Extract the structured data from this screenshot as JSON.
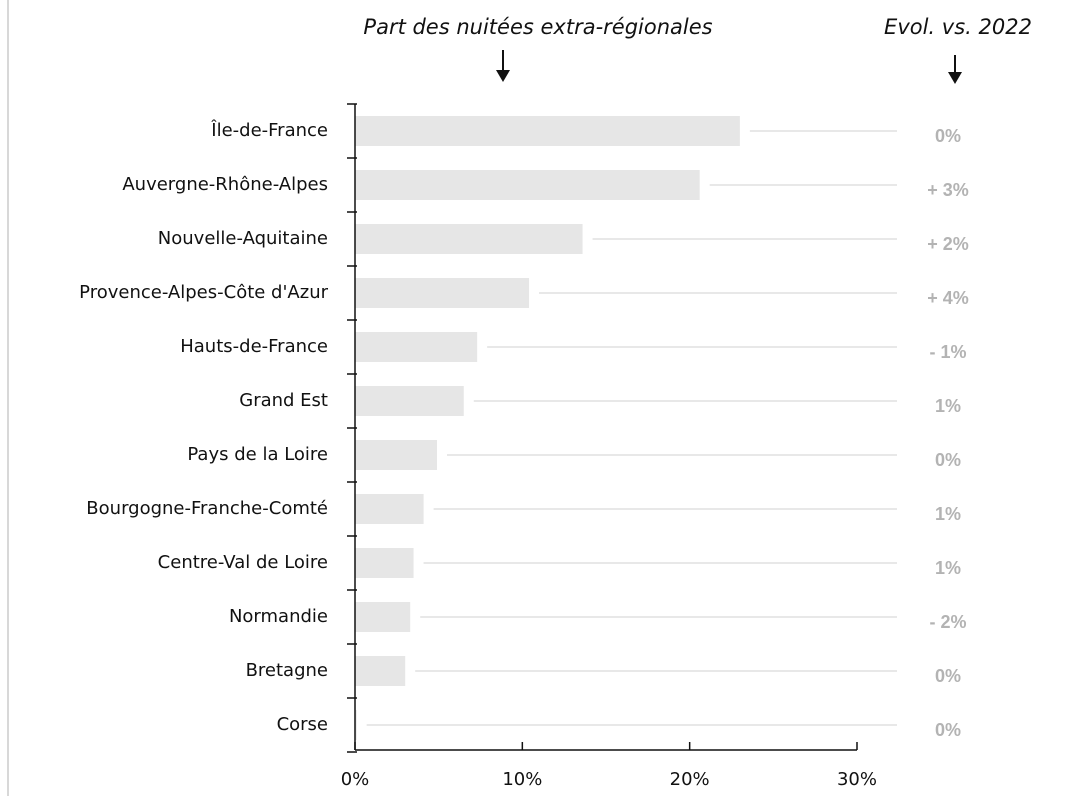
{
  "chart_data": {
    "type": "barh",
    "title": "Part des nuitées extra-régionales",
    "evolution_title": "Evol. vs. 2022",
    "categories": [
      "Île-de-France",
      "Auvergne-Rhône-Alpes",
      "Nouvelle-Aquitaine",
      "Provence-Alpes-Côte d'Azur",
      "Hauts-de-France",
      "Grand Est",
      "Pays de la Loire",
      "Bourgogne-Franche-Comté",
      "Centre-Val de Loire",
      "Normandie",
      "Bretagne",
      "Corse"
    ],
    "values": [
      23.0,
      20.6,
      13.6,
      10.4,
      7.3,
      6.5,
      4.9,
      4.1,
      3.5,
      3.3,
      3.0,
      0.1
    ],
    "evolution_labels": [
      "0%",
      "+ 3%",
      "+ 2%",
      "+ 4%",
      "- 1%",
      "1%",
      "0%",
      "1%",
      "1%",
      "- 2%",
      "0%",
      "0%"
    ],
    "color": "#e6e6e6",
    "xlim": [
      0,
      30
    ],
    "xticks": [
      {
        "value": 0,
        "label": "0%"
      },
      {
        "value": 10,
        "label": "10%"
      },
      {
        "value": 20,
        "label": "20%"
      },
      {
        "value": 30,
        "label": "30%"
      }
    ]
  }
}
